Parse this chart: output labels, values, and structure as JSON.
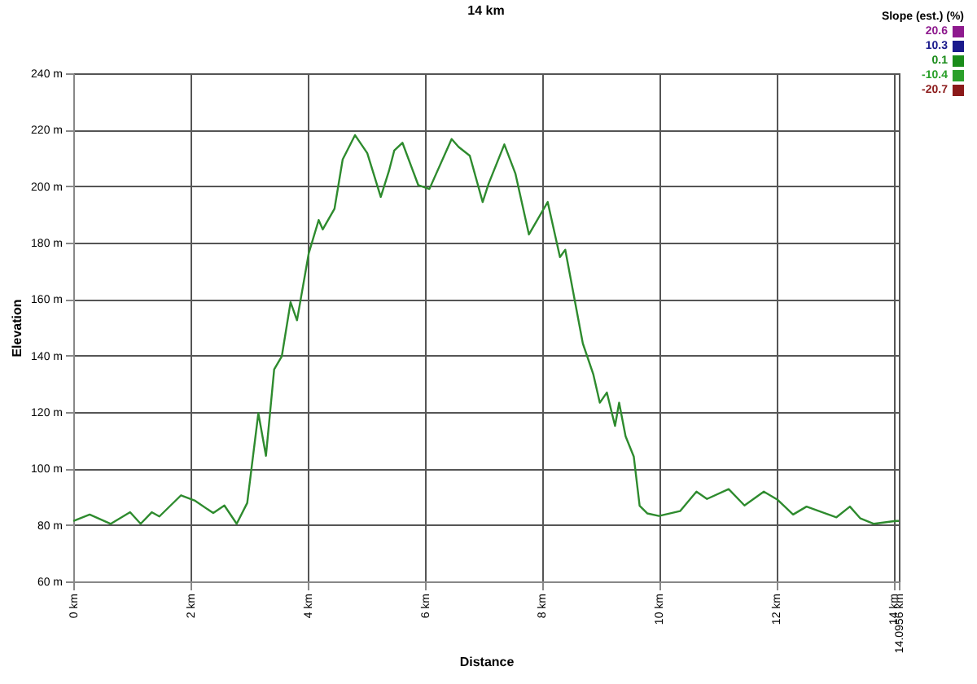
{
  "chart_data": {
    "type": "line",
    "title": "14 km",
    "xlabel": "Distance",
    "ylabel": "Elevation",
    "x": [
      0,
      0.28,
      0.64,
      0.97,
      1.15,
      1.34,
      1.47,
      1.84,
      2.07,
      2.39,
      2.58,
      2.79,
      2.97,
      3.16,
      3.29,
      3.43,
      3.56,
      3.71,
      3.82,
      4.02,
      4.19,
      4.26,
      4.46,
      4.6,
      4.81,
      5.02,
      5.25,
      5.39,
      5.48,
      5.62,
      5.89,
      6.08,
      6.46,
      6.58,
      6.77,
      6.99,
      7.09,
      7.36,
      7.55,
      7.78,
      8.1,
      8.31,
      8.4,
      8.7,
      8.88,
      8.99,
      9.11,
      9.25,
      9.32,
      9.43,
      9.57,
      9.67,
      9.8,
      10.0,
      10.36,
      10.64,
      10.82,
      11.19,
      11.46,
      11.79,
      12.02,
      12.29,
      12.52,
      13.03,
      13.26,
      13.44,
      13.67,
      14.04,
      14.0956
    ],
    "series": [
      {
        "color": "#2e8b2e",
        "values": [
          81.4,
          83.7,
          80.4,
          84.5,
          80.4,
          84.5,
          83,
          90.5,
          88.7,
          84.2,
          86.9,
          80.4,
          87.8,
          119.6,
          104.5,
          135.1,
          139.7,
          158.9,
          152.5,
          176.2,
          188,
          184.7,
          192,
          209.5,
          218.1,
          211.7,
          196.2,
          205.4,
          212.6,
          215.4,
          200.4,
          199,
          216.7,
          213.9,
          210.8,
          194.4,
          200.8,
          214.8,
          204.4,
          182.9,
          194.4,
          174.9,
          177.5,
          144.3,
          133.3,
          123.3,
          126.9,
          115.1,
          123.3,
          111.4,
          104.2,
          86.8,
          84.1,
          83.2,
          84.9,
          91.8,
          89.2,
          92.7,
          86.9,
          91.8,
          89,
          83.7,
          86.5,
          82.7,
          86.5,
          82.3,
          80.4,
          81.4,
          81.4
        ]
      }
    ],
    "xlim": [
      0,
      14.0956
    ],
    "xticks": [
      {
        "value": 0,
        "label": "0 km"
      },
      {
        "value": 2,
        "label": "2 km"
      },
      {
        "value": 4,
        "label": "4 km"
      },
      {
        "value": 6,
        "label": "6 km"
      },
      {
        "value": 8,
        "label": "8 km"
      },
      {
        "value": 10,
        "label": "10 km"
      },
      {
        "value": 12,
        "label": "12 km"
      },
      {
        "value": 14,
        "label": "14 km"
      },
      {
        "value": 14.0956,
        "label": "14.0956 km"
      }
    ],
    "ylim": [
      60,
      240
    ],
    "yticks": [
      {
        "value": 60,
        "label": "60 m"
      },
      {
        "value": 80,
        "label": "80 m"
      },
      {
        "value": 100,
        "label": "100 m"
      },
      {
        "value": 120,
        "label": "120 m"
      },
      {
        "value": 140,
        "label": "140 m"
      },
      {
        "value": 160,
        "label": "160 m"
      },
      {
        "value": 180,
        "label": "180 m"
      },
      {
        "value": 200,
        "label": "200 m"
      },
      {
        "value": 220,
        "label": "220 m"
      },
      {
        "value": 240,
        "label": "240 m"
      }
    ],
    "grid": true,
    "annotations": [
      "Slope (est.) (%)",
      "20.6",
      "10.3",
      "0.1",
      "-10.4",
      "-20.7"
    ]
  }
}
